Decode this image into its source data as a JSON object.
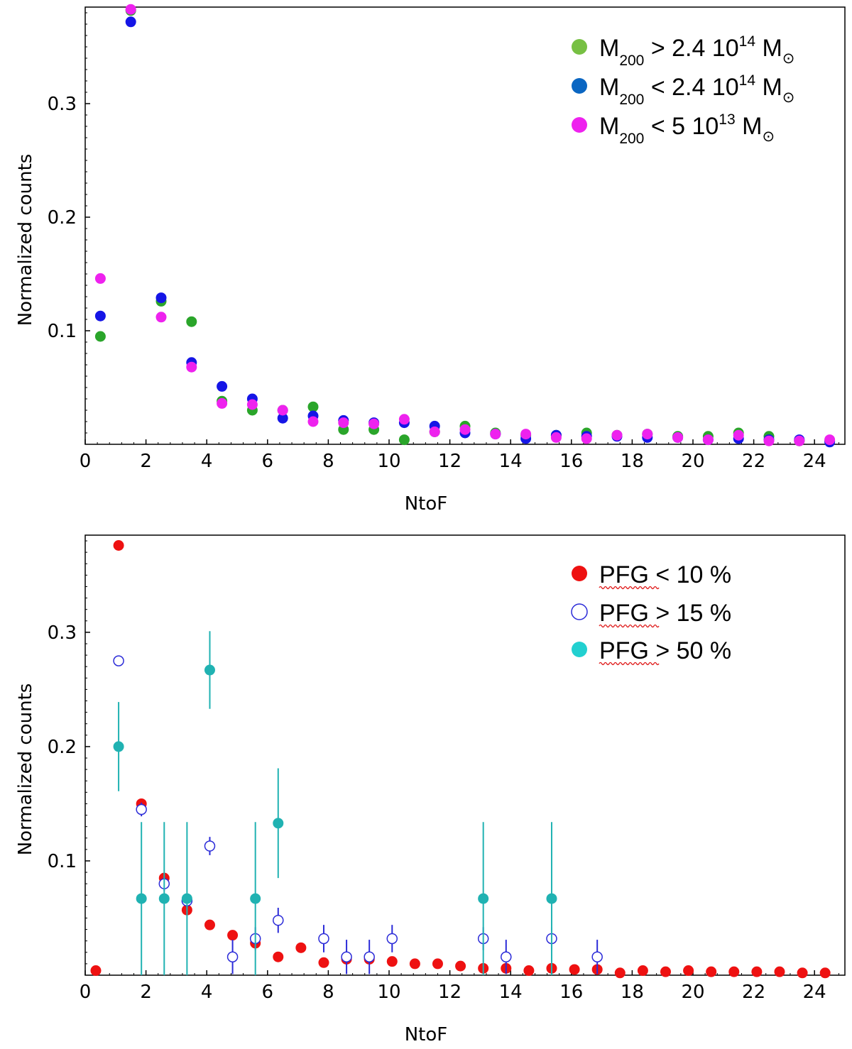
{
  "chart_data": [
    {
      "type": "scatter",
      "xlabel": "NtoF",
      "ylabel": "Normalized counts",
      "xlim": [
        0,
        25
      ],
      "ylim": [
        0,
        0.385
      ],
      "x_ticks": [
        "0",
        "2",
        "4",
        "6",
        "8",
        "10",
        "12",
        "14",
        "16",
        "18",
        "20",
        "22",
        "24"
      ],
      "y_ticks": [
        "0.1",
        "0.2",
        "0.3"
      ],
      "legend_position": "top-right",
      "series": [
        {
          "legend": {
            "prefix": "M",
            "sub": "200",
            "mid": " > 2.4 10",
            "sup": "14",
            "unit": " M",
            "unit_sub": "⊙"
          },
          "color": "#2aa52a",
          "legend_color": "#77c043",
          "marker": "filled",
          "x": [
            0.5,
            1.5,
            2.5,
            3.5,
            4.5,
            5.5,
            6.5,
            7.5,
            8.5,
            9.5,
            10.5,
            11.5,
            12.5,
            13.5,
            14.5,
            15.5,
            16.5,
            17.5,
            18.5,
            19.5,
            20.5,
            21.5,
            22.5,
            23.5,
            24.5
          ],
          "y": [
            0.095,
            0.382,
            0.126,
            0.108,
            0.038,
            0.03,
            0.03,
            0.033,
            0.013,
            0.013,
            0.004,
            0.011,
            0.016,
            0.01,
            0.008,
            0.008,
            0.01,
            0.008,
            0.009,
            0.007,
            0.007,
            0.01,
            0.007,
            0.003,
            0.003
          ]
        },
        {
          "legend": {
            "prefix": "M",
            "sub": "200",
            "mid": " < 2.4 10",
            "sup": "14",
            "unit": " M",
            "unit_sub": "⊙"
          },
          "color": "#1515e6",
          "legend_color": "#0a66c2",
          "marker": "filled",
          "x": [
            0.5,
            1.5,
            2.5,
            3.5,
            4.5,
            5.5,
            6.5,
            7.5,
            8.5,
            9.5,
            10.5,
            11.5,
            12.5,
            13.5,
            14.5,
            15.5,
            16.5,
            17.5,
            18.5,
            19.5,
            20.5,
            21.5,
            22.5,
            23.5,
            24.5
          ],
          "y": [
            0.113,
            0.372,
            0.129,
            0.072,
            0.051,
            0.04,
            0.023,
            0.025,
            0.021,
            0.019,
            0.019,
            0.016,
            0.01,
            0.009,
            0.005,
            0.008,
            0.007,
            0.007,
            0.006,
            0.006,
            0.004,
            0.005,
            0.004,
            0.004,
            0.002
          ]
        },
        {
          "legend": {
            "prefix": "M",
            "sub": "200",
            "mid": " < 5 10",
            "sup": "13",
            "unit": " M",
            "unit_sub": "⊙"
          },
          "color": "#ee22ee",
          "legend_color": "#ee22ee",
          "marker": "filled",
          "x": [
            0.5,
            1.5,
            2.5,
            3.5,
            4.5,
            5.5,
            6.5,
            7.5,
            8.5,
            9.5,
            10.5,
            11.5,
            12.5,
            13.5,
            14.5,
            15.5,
            16.5,
            17.5,
            18.5,
            19.5,
            20.5,
            21.5,
            22.5,
            23.5,
            24.5
          ],
          "y": [
            0.146,
            0.383,
            0.112,
            0.068,
            0.036,
            0.035,
            0.03,
            0.02,
            0.019,
            0.018,
            0.022,
            0.011,
            0.013,
            0.009,
            0.009,
            0.006,
            0.005,
            0.008,
            0.009,
            0.006,
            0.004,
            0.008,
            0.003,
            0.003,
            0.004
          ]
        }
      ]
    },
    {
      "type": "scatter",
      "xlabel": "NtoF",
      "ylabel": "Normalized counts",
      "xlim": [
        0,
        25
      ],
      "ylim": [
        0,
        0.385
      ],
      "x_ticks": [
        "0",
        "2",
        "4",
        "6",
        "8",
        "10",
        "12",
        "14",
        "16",
        "18",
        "20",
        "22",
        "24"
      ],
      "y_ticks": [
        "0.1",
        "0.2",
        "0.3"
      ],
      "legend_position": "top-right",
      "series": [
        {
          "legend": {
            "prefix": "PFG < 10 %"
          },
          "color": "#ee1111",
          "marker": "filled",
          "x": [
            0.35,
            1.1,
            1.85,
            2.6,
            3.35,
            4.1,
            4.85,
            5.6,
            6.35,
            7.1,
            7.85,
            8.6,
            9.35,
            10.1,
            10.85,
            11.6,
            12.35,
            13.1,
            13.85,
            14.6,
            15.35,
            16.1,
            16.85,
            17.6,
            18.35,
            19.1,
            19.85,
            20.6,
            21.35,
            22.1,
            22.85,
            23.6,
            24.35
          ],
          "y": [
            0.004,
            0.376,
            0.15,
            0.085,
            0.057,
            0.044,
            0.035,
            0.028,
            0.016,
            0.024,
            0.011,
            0.014,
            0.014,
            0.012,
            0.01,
            0.01,
            0.008,
            0.006,
            0.006,
            0.004,
            0.006,
            0.005,
            0.005,
            0.002,
            0.004,
            0.003,
            0.004,
            0.003,
            0.003,
            0.003,
            0.003,
            0.002,
            0.002
          ]
        },
        {
          "legend": {
            "prefix": "PFG > 15 %"
          },
          "color": "#2b2bd8",
          "marker": "open",
          "x": [
            1.1,
            1.85,
            2.6,
            3.35,
            4.1,
            4.85,
            5.6,
            6.35,
            7.85,
            8.6,
            9.35,
            10.1,
            13.1,
            13.85,
            15.35,
            16.85
          ],
          "y": [
            0.275,
            0.145,
            0.08,
            0.065,
            0.113,
            0.016,
            0.032,
            0.048,
            0.032,
            0.016,
            0.016,
            0.032,
            0.032,
            0.016,
            0.032,
            0.016
          ],
          "err": [
            0.004,
            0.006,
            0.006,
            0.006,
            0.008,
            0.015,
            0.01,
            0.011,
            0.012,
            0.015,
            0.015,
            0.012,
            0.01,
            0.015,
            0.01,
            0.015
          ]
        },
        {
          "legend": {
            "prefix": "PFG > 50 %"
          },
          "color": "#20b2b2",
          "legend_color": "#22d0d0",
          "marker": "filled",
          "x": [
            1.1,
            1.85,
            2.6,
            3.35,
            4.1,
            5.6,
            6.35,
            13.1,
            15.35
          ],
          "y": [
            0.2,
            0.067,
            0.067,
            0.067,
            0.267,
            0.067,
            0.133,
            0.067,
            0.067
          ],
          "err": [
            0.039,
            0.067,
            0.067,
            0.067,
            0.034,
            0.067,
            0.048,
            0.067,
            0.067
          ]
        }
      ]
    }
  ]
}
